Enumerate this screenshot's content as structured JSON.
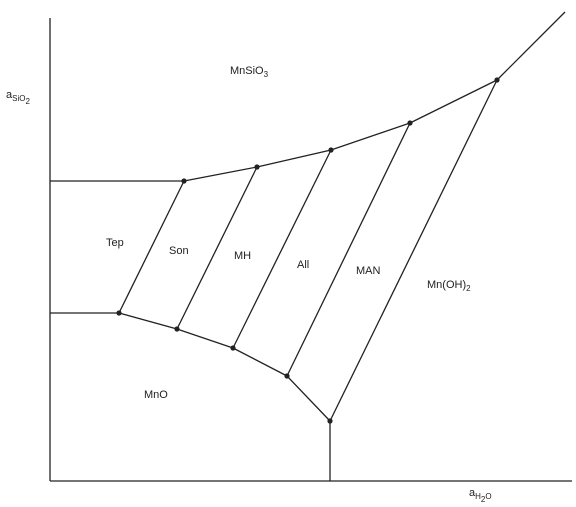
{
  "axes": {
    "y_label": {
      "base": "a",
      "sub": "SiO",
      "sub2": "2"
    },
    "x_label": {
      "base": "a",
      "sub": "H",
      "sub2": "2",
      "tail": "O"
    }
  },
  "phases": {
    "mnsio3": {
      "text": "MnSiO",
      "sub": "3"
    },
    "tep": "Tep",
    "son": "Son",
    "mh": "MH",
    "all": "All",
    "man": "MAN",
    "mnoh2": {
      "text": "Mn(OH)",
      "sub": "2"
    },
    "mno": "MnO"
  },
  "colors": {
    "ink": "#222222",
    "background": "#ffffff"
  }
}
